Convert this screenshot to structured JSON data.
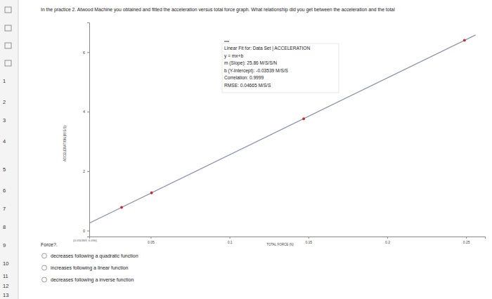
{
  "chart_data": {
    "type": "scatter",
    "x_label": "TOTAL FORCE (N)",
    "y_label": "ACCELERATION (M/S/S)",
    "xlim": [
      0.011,
      0.262
    ],
    "ylim": [
      -0.2,
      7.0
    ],
    "xticks": [
      0.05,
      0.1,
      0.15,
      0.2,
      0.25
    ],
    "yticks": [
      0,
      2,
      4,
      6
    ],
    "grid": false,
    "fit_box": [
      "Linear Fit for: Data Set | ACCELERATION",
      "y = mx+b",
      "m (Slope): 25.86 M/S/S/N",
      "b (Y-Intercept): -0.03539 M/S/S",
      "Correlation: 0.9999",
      "RMSE: 0.04665 M/S/S"
    ],
    "readout": "(0.050369, 6.056)",
    "series": [
      {
        "type": "scatter",
        "color": "#d0262a",
        "marker": "circle",
        "x": [
          0.0315,
          0.0505,
          0.147,
          0.249
        ],
        "values": [
          0.78,
          1.27,
          3.76,
          6.4
        ]
      },
      {
        "type": "line",
        "color": "#8f98b2",
        "line_style": "solid",
        "x": [
          0.011,
          0.256
        ],
        "values": [
          0.25,
          6.58
        ]
      }
    ]
  },
  "question": {
    "text": "In the practice 2. Atwood Machine you obtained and fitted the acceleration versus total force graph. What relationship did you get between the acceleration and the total",
    "text_end": "Force?.",
    "options": [
      "decreases following a quadratic function",
      "increases following a linear function",
      "decreases following a inverse function"
    ]
  },
  "sidebar": [
    "1",
    "2",
    "3",
    "4",
    "5",
    "6",
    "7",
    "8",
    "9",
    "10",
    "11",
    "12",
    "13"
  ]
}
